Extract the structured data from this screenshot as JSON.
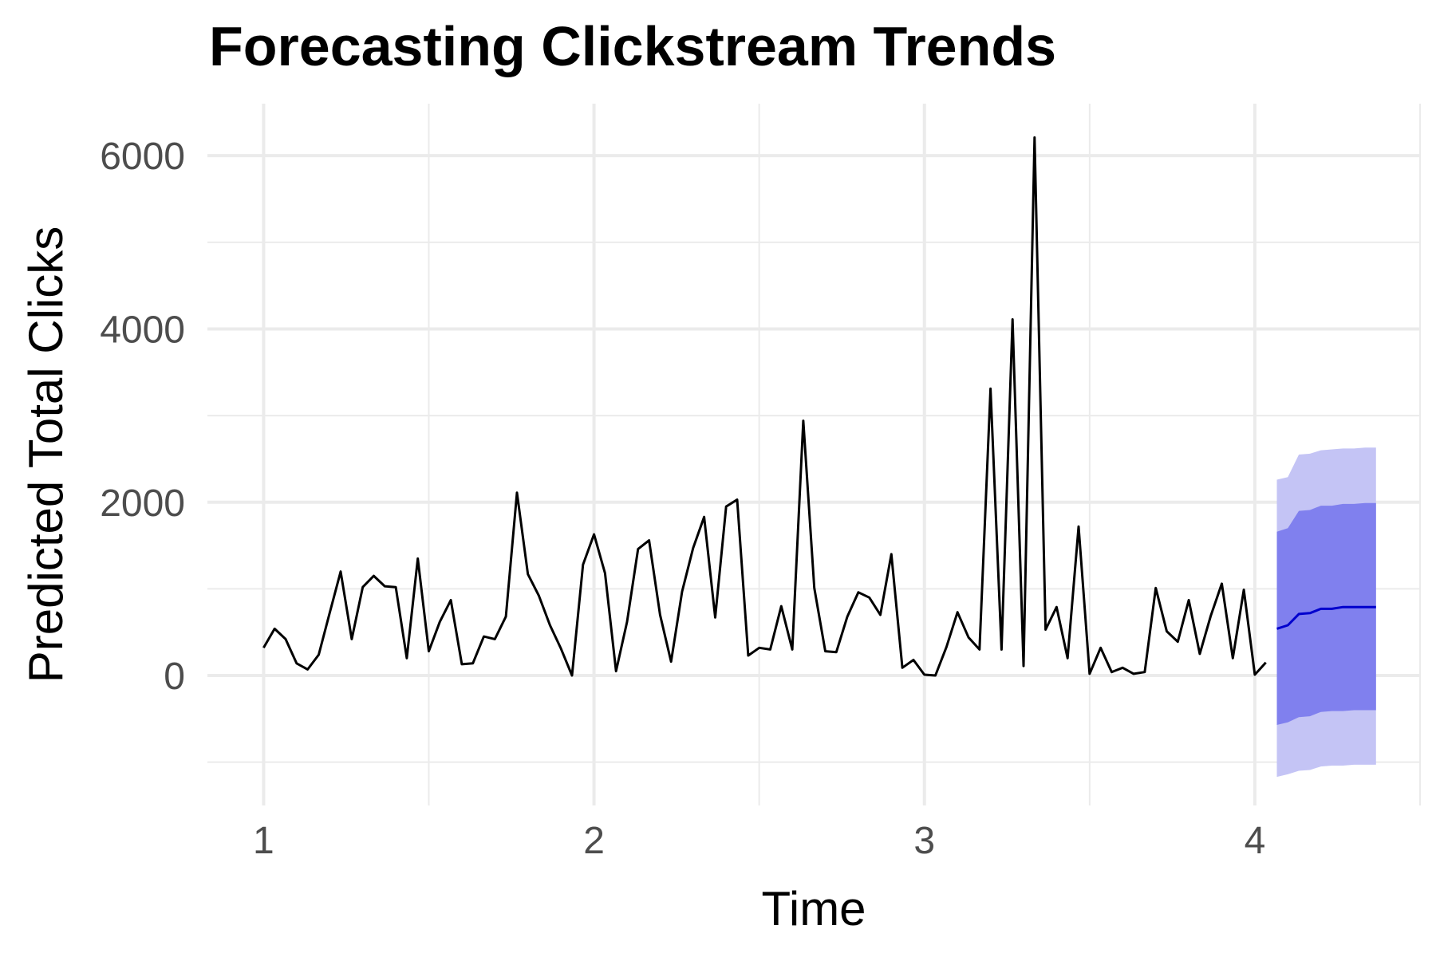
{
  "chart_data": {
    "type": "line",
    "title": "Forecasting Clickstream Trends",
    "xlabel": "Time",
    "ylabel": "Predicted Total Clicks",
    "xlim": [
      0.83,
      4.5
    ],
    "ylim": [
      -1500,
      6600
    ],
    "x_ticks": [
      1,
      2,
      3,
      4
    ],
    "x_tick_labels": [
      "1",
      "2",
      "3",
      "4"
    ],
    "x_minor_ticks": [
      1.5,
      2.5,
      3.5,
      4.5
    ],
    "y_ticks": [
      0,
      2000,
      4000,
      6000
    ],
    "y_tick_labels": [
      "0",
      "2000",
      "4000",
      "6000"
    ],
    "y_minor_ticks": [
      -1000,
      1000,
      3000,
      5000
    ],
    "grid": true,
    "colors": {
      "observed": "#000000",
      "forecast_line": "#0000cd",
      "band_80": "#8080ee",
      "band_95": "#c4c4f5",
      "grid": "#ebebeb"
    },
    "series": [
      {
        "x": [
          1.0,
          1.0333,
          1.0667,
          1.1,
          1.1333,
          1.1667,
          1.2,
          1.2333,
          1.2667,
          1.3,
          1.3333,
          1.3667,
          1.4,
          1.4333,
          1.4667,
          1.5,
          1.5333,
          1.5667,
          1.6,
          1.6333,
          1.6667,
          1.7,
          1.7333,
          1.7667,
          1.8,
          1.8333,
          1.8667,
          1.9,
          1.9333,
          1.9667,
          2.0,
          2.0333,
          2.0667,
          2.1,
          2.1333,
          2.1667,
          2.2,
          2.2333,
          2.2667,
          2.3,
          2.3333,
          2.3667,
          2.4,
          2.4333,
          2.4667,
          2.5,
          2.5333,
          2.5667,
          2.6,
          2.6333,
          2.6667,
          2.7,
          2.7333,
          2.7667,
          2.8,
          2.8333,
          2.8667,
          2.9,
          2.9333,
          2.9667,
          3.0,
          3.0333,
          3.0667,
          3.1,
          3.1333,
          3.1667,
          3.2,
          3.2333,
          3.2667,
          3.3,
          3.3333,
          3.3667,
          3.4,
          3.4333,
          3.4667,
          3.5,
          3.5333,
          3.5667,
          3.6,
          3.6333,
          3.6667,
          3.7,
          3.7333,
          3.7667,
          3.8,
          3.8333,
          3.8667,
          3.9,
          3.9333,
          3.9667,
          4.0,
          4.0333
        ],
        "y": [
          320,
          540,
          420,
          140,
          70,
          240,
          720,
          1200,
          420,
          1020,
          1150,
          1030,
          1020,
          200,
          1350,
          280,
          620,
          870,
          130,
          140,
          450,
          420,
          680,
          2110,
          1170,
          920,
          580,
          310,
          0,
          1280,
          1630,
          1180,
          50,
          620,
          1460,
          1560,
          700,
          160,
          970,
          1470,
          1830,
          670,
          1950,
          2030,
          230,
          320,
          300,
          800,
          300,
          2940,
          1010,
          280,
          270,
          680,
          960,
          900,
          700,
          1400,
          90,
          180,
          10,
          0,
          330,
          730,
          440,
          300,
          3310,
          300,
          4110,
          110,
          6210,
          530,
          790,
          200,
          1720,
          20,
          320,
          40,
          90,
          20,
          40,
          1010,
          510,
          390,
          870,
          250,
          690,
          1060,
          200,
          990,
          10,
          150
        ]
      },
      {
        "name": "forecast",
        "x": [
          4.0667,
          4.1,
          4.1333,
          4.1667,
          4.2,
          4.2333,
          4.2667,
          4.3,
          4.3333,
          4.3667
        ],
        "y": [
          540,
          580,
          710,
          720,
          770,
          770,
          790,
          790,
          790,
          790
        ],
        "lo80": [
          -570,
          -540,
          -480,
          -470,
          -420,
          -410,
          -410,
          -400,
          -400,
          -400
        ],
        "hi80": [
          1660,
          1700,
          1900,
          1910,
          1960,
          1960,
          1980,
          1980,
          1990,
          1990
        ],
        "lo95": [
          -1170,
          -1140,
          -1100,
          -1090,
          -1050,
          -1040,
          -1040,
          -1030,
          -1030,
          -1030
        ],
        "hi95": [
          2260,
          2290,
          2550,
          2560,
          2600,
          2610,
          2620,
          2620,
          2630,
          2630
        ]
      }
    ]
  }
}
